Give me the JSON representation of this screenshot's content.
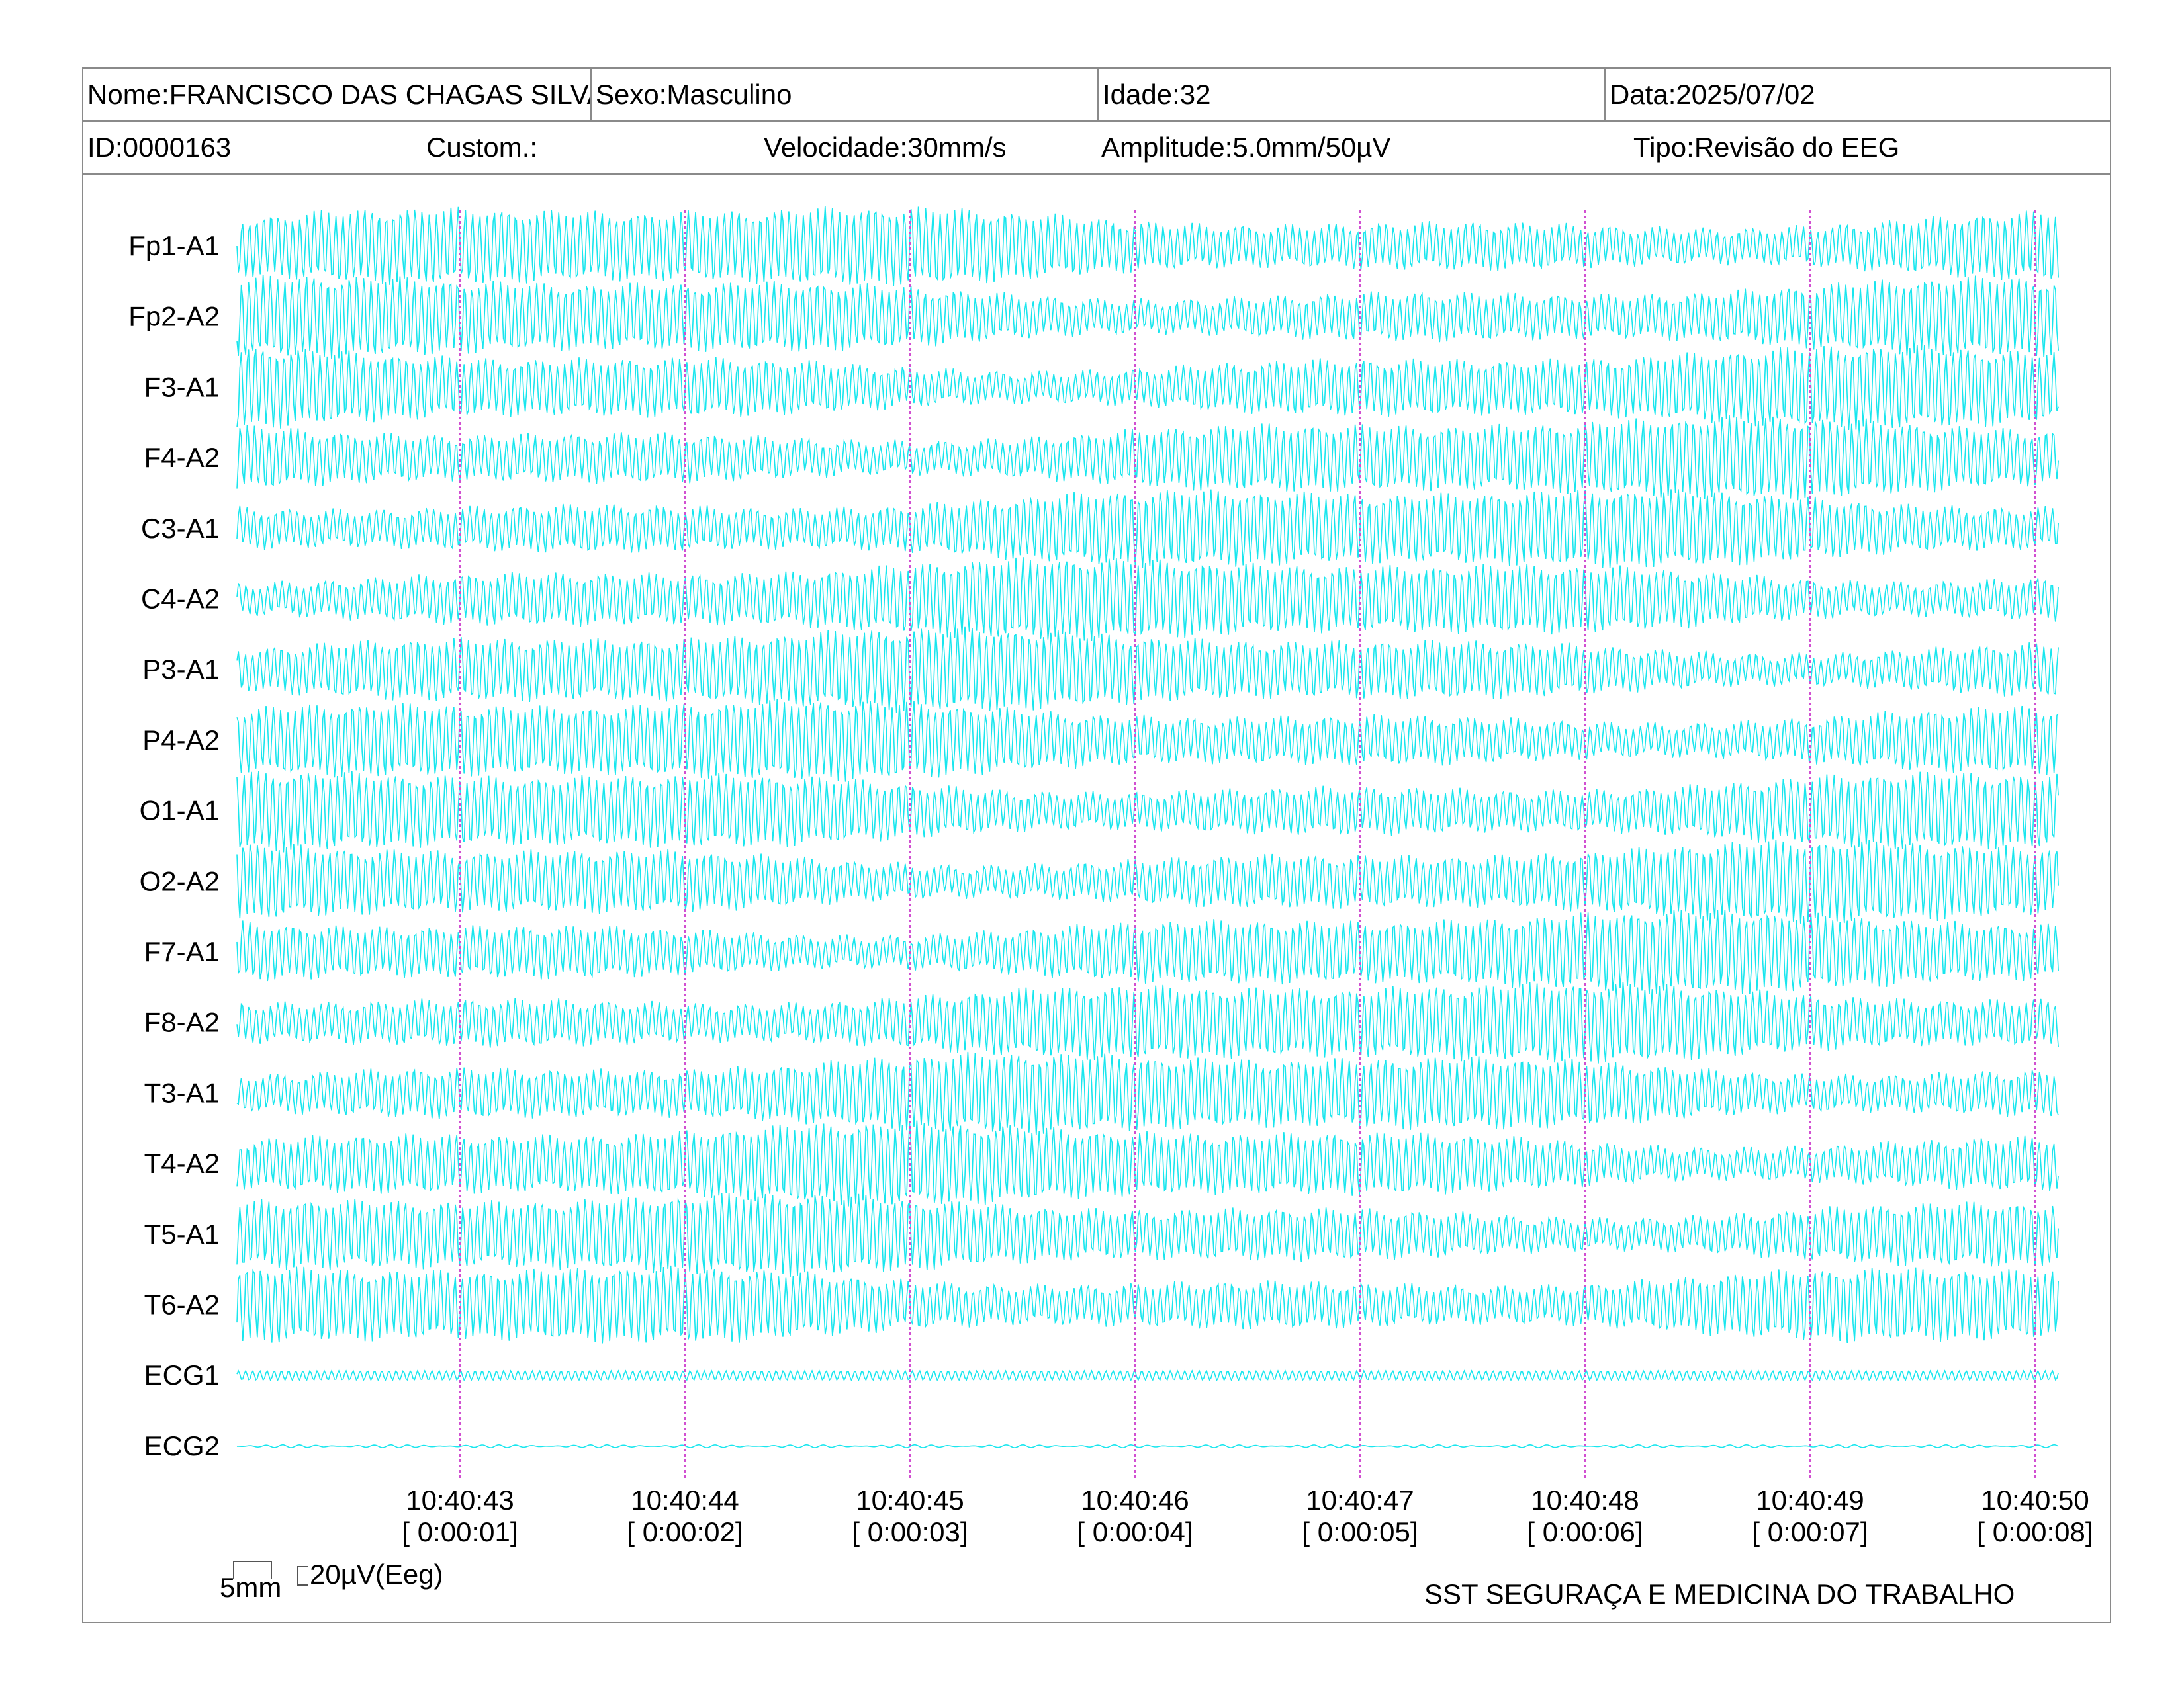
{
  "header": {
    "name": "Nome:FRANCISCO DAS CHAGAS SILVA",
    "sex": "Sexo:Masculino",
    "age": "Idade:32",
    "date": "Data:2025/07/02",
    "id": "ID:0000163",
    "custom": "Custom.:",
    "speed": "Velocidade:30mm/s",
    "amplitude": "Amplitude:5.0mm/50µV",
    "type": "Tipo:Revisão do EEG"
  },
  "channels": [
    {
      "label": "Fp1-A1",
      "kind": "eeg"
    },
    {
      "label": "Fp2-A2",
      "kind": "eeg"
    },
    {
      "label": "F3-A1",
      "kind": "eeg"
    },
    {
      "label": "F4-A2",
      "kind": "eeg"
    },
    {
      "label": "C3-A1",
      "kind": "eeg"
    },
    {
      "label": "C4-A2",
      "kind": "eeg"
    },
    {
      "label": "P3-A1",
      "kind": "eeg"
    },
    {
      "label": "P4-A2",
      "kind": "eeg"
    },
    {
      "label": "O1-A1",
      "kind": "eeg"
    },
    {
      "label": "O2-A2",
      "kind": "eeg"
    },
    {
      "label": "F7-A1",
      "kind": "eeg"
    },
    {
      "label": "F8-A2",
      "kind": "eeg"
    },
    {
      "label": "T3-A1",
      "kind": "eeg"
    },
    {
      "label": "T4-A2",
      "kind": "eeg"
    },
    {
      "label": "T5-A1",
      "kind": "eeg"
    },
    {
      "label": "T6-A2",
      "kind": "eeg"
    },
    {
      "label": "ECG1",
      "kind": "ecg"
    },
    {
      "label": "ECG2",
      "kind": "ecg-flat"
    }
  ],
  "time_markers": [
    {
      "clock": "10:40:43",
      "elapsed": "[ 0:00:01]"
    },
    {
      "clock": "10:40:44",
      "elapsed": "[ 0:00:02]"
    },
    {
      "clock": "10:40:45",
      "elapsed": "[ 0:00:03]"
    },
    {
      "clock": "10:40:46",
      "elapsed": "[ 0:00:04]"
    },
    {
      "clock": "10:40:47",
      "elapsed": "[ 0:00:05]"
    },
    {
      "clock": "10:40:48",
      "elapsed": "[ 0:00:06]"
    },
    {
      "clock": "10:40:49",
      "elapsed": "[ 0:00:07]"
    },
    {
      "clock": "10:40:50",
      "elapsed": "[ 0:00:08]"
    }
  ],
  "scale": {
    "time_label": "5mm",
    "amp_label": "20µV(Eeg)"
  },
  "footer": {
    "company": "SST SEGURAÇA E MEDICINA DO TRABALHO"
  },
  "colors": {
    "trace": "#19e6ee",
    "marker": "#d14fd1",
    "border": "#8a8a8a"
  }
}
